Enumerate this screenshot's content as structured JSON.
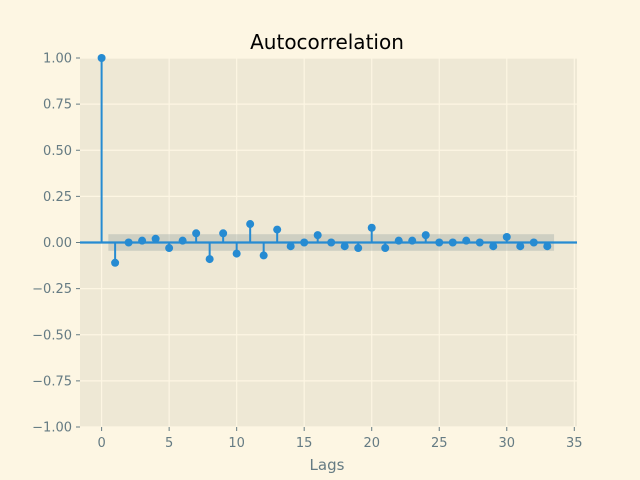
{
  "chart_data": {
    "type": "stem",
    "title": "Autocorrelation",
    "xlabel": "Lags",
    "ylabel": "",
    "xlim": [
      -1.6,
      35.2
    ],
    "ylim": [
      -1.0,
      1.0
    ],
    "xticks": [
      0,
      5,
      10,
      15,
      20,
      25,
      30,
      35
    ],
    "xtick_labels": [
      "0",
      "5",
      "10",
      "15",
      "20",
      "25",
      "30",
      "35"
    ],
    "yticks": [
      1.0,
      0.75,
      0.5,
      0.25,
      0.0,
      -0.25,
      -0.5,
      -0.75,
      -1.0
    ],
    "ytick_labels": [
      "1.00",
      "0.75",
      "0.50",
      "0.25",
      "0.00",
      "−0.25",
      "−0.50",
      "−0.75",
      "−1.00"
    ],
    "grid": true,
    "lags": [
      0,
      1,
      2,
      3,
      4,
      5,
      6,
      7,
      8,
      9,
      10,
      11,
      12,
      13,
      14,
      15,
      16,
      17,
      18,
      19,
      20,
      21,
      22,
      23,
      24,
      25,
      26,
      27,
      28,
      29,
      30,
      31,
      32,
      33
    ],
    "values": [
      1.0,
      -0.11,
      0.0,
      0.01,
      0.02,
      -0.03,
      0.01,
      0.05,
      -0.09,
      0.05,
      -0.06,
      0.1,
      -0.07,
      0.07,
      -0.02,
      0.0,
      0.04,
      0.0,
      -0.02,
      -0.03,
      0.08,
      -0.03,
      0.01,
      0.01,
      0.04,
      0.0,
      0.0,
      0.01,
      0.0,
      -0.02,
      0.03,
      -0.02,
      0.0,
      -0.02
    ],
    "confidence_band": [
      -0.045,
      0.045
    ],
    "confidence_band_range": [
      0.5,
      33.5
    ],
    "colors": {
      "stem": "#268bd2",
      "band": "#93a1a1",
      "plot_background": "#eee8d5",
      "figure_background": "#fdf6e3",
      "grid": "#fdf6e3",
      "tick_text": "#657b83"
    }
  }
}
